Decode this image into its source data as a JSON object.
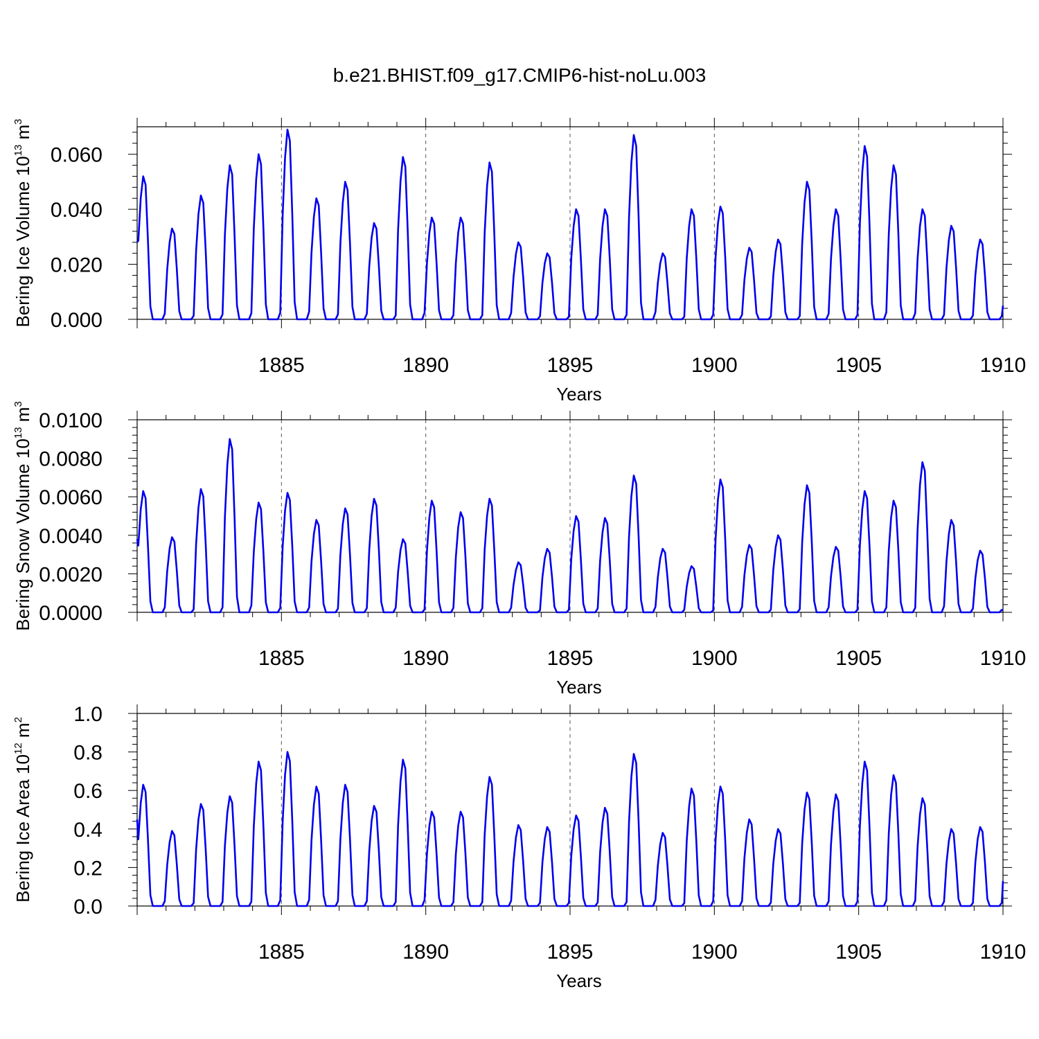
{
  "title": "b.e21.BHIST.f09_g17.CMIP6-hist-noLu.003",
  "chart_data": [
    {
      "type": "line",
      "ylabel": "Bering Ice Volume",
      "yunit_base": "10",
      "yunit_exp": "13",
      "yunit_suffix": "m",
      "yunit_suffix_exp": "3",
      "xlabel": "Years",
      "xlim": [
        1880,
        1910
      ],
      "ylim": [
        0,
        0.07
      ],
      "yticks": [
        0,
        0.02,
        0.04,
        0.06
      ],
      "ytick_labels": [
        "0.000",
        "0.020",
        "0.040",
        "0.060"
      ],
      "xticks": [
        1885,
        1890,
        1895,
        1900,
        1905,
        1910
      ],
      "xtick_labels": [
        "1885",
        "1890",
        "1895",
        "1900",
        "1905",
        "1910"
      ],
      "grid_x": [
        1885,
        1890,
        1895,
        1900,
        1905
      ],
      "series": [
        {
          "name": "Bering Ice Volume",
          "color": "#0000ee",
          "annual_peaks": [
            0.052,
            0.033,
            0.045,
            0.056,
            0.06,
            0.069,
            0.044,
            0.05,
            0.035,
            0.059,
            0.037,
            0.037,
            0.057,
            0.028,
            0.024,
            0.04,
            0.04,
            0.067,
            0.024,
            0.04,
            0.041,
            0.026,
            0.029,
            0.05,
            0.04,
            0.063,
            0.056,
            0.04,
            0.034,
            0.029
          ],
          "start_value": 0.028,
          "end_value": 0.005
        }
      ]
    },
    {
      "type": "line",
      "ylabel": "Bering Snow Volume",
      "yunit_base": "10",
      "yunit_exp": "13",
      "yunit_suffix": "m",
      "yunit_suffix_exp": "3",
      "xlabel": "Years",
      "xlim": [
        1880,
        1910
      ],
      "ylim": [
        0,
        0.01
      ],
      "yticks": [
        0,
        0.002,
        0.004,
        0.006,
        0.008,
        0.01
      ],
      "ytick_labels": [
        "0.0000",
        "0.0020",
        "0.0040",
        "0.0060",
        "0.0080",
        "0.0100"
      ],
      "xticks": [
        1885,
        1890,
        1895,
        1900,
        1905,
        1910
      ],
      "xtick_labels": [
        "1885",
        "1890",
        "1895",
        "1900",
        "1905",
        "1910"
      ],
      "grid_x": [
        1885,
        1890,
        1895,
        1900,
        1905
      ],
      "series": [
        {
          "name": "Bering Snow Volume",
          "color": "#0000ee",
          "annual_peaks": [
            0.0063,
            0.0039,
            0.0064,
            0.009,
            0.0057,
            0.0062,
            0.0048,
            0.0054,
            0.0059,
            0.0038,
            0.0058,
            0.0052,
            0.0059,
            0.0026,
            0.0033,
            0.005,
            0.0049,
            0.0071,
            0.0033,
            0.0024,
            0.0069,
            0.0035,
            0.004,
            0.0066,
            0.0034,
            0.0063,
            0.0058,
            0.0078,
            0.0048,
            0.0032
          ],
          "start_value": 0.0038,
          "end_value": 0.0001
        }
      ]
    },
    {
      "type": "line",
      "ylabel": "Bering Ice Area",
      "yunit_base": "10",
      "yunit_exp": "12",
      "yunit_suffix": "m",
      "yunit_suffix_exp": "2",
      "xlabel": "Years",
      "xlim": [
        1880,
        1910
      ],
      "ylim": [
        0,
        1.0
      ],
      "yticks": [
        0,
        0.2,
        0.4,
        0.6,
        0.8,
        1.0
      ],
      "ytick_labels": [
        "0.0",
        "0.2",
        "0.4",
        "0.6",
        "0.8",
        "1.0"
      ],
      "xticks": [
        1885,
        1890,
        1895,
        1900,
        1905,
        1910
      ],
      "xtick_labels": [
        "1885",
        "1890",
        "1895",
        "1900",
        "1905",
        "1910"
      ],
      "grid_x": [
        1885,
        1890,
        1895,
        1900,
        1905
      ],
      "series": [
        {
          "name": "Bering Ice Area",
          "color": "#0000ee",
          "annual_peaks": [
            0.63,
            0.39,
            0.53,
            0.57,
            0.75,
            0.8,
            0.62,
            0.63,
            0.52,
            0.76,
            0.49,
            0.49,
            0.67,
            0.42,
            0.41,
            0.47,
            0.51,
            0.79,
            0.38,
            0.61,
            0.62,
            0.45,
            0.4,
            0.59,
            0.58,
            0.75,
            0.68,
            0.56,
            0.4,
            0.41
          ],
          "start_value": 0.45,
          "end_value": 0.13
        }
      ]
    }
  ]
}
